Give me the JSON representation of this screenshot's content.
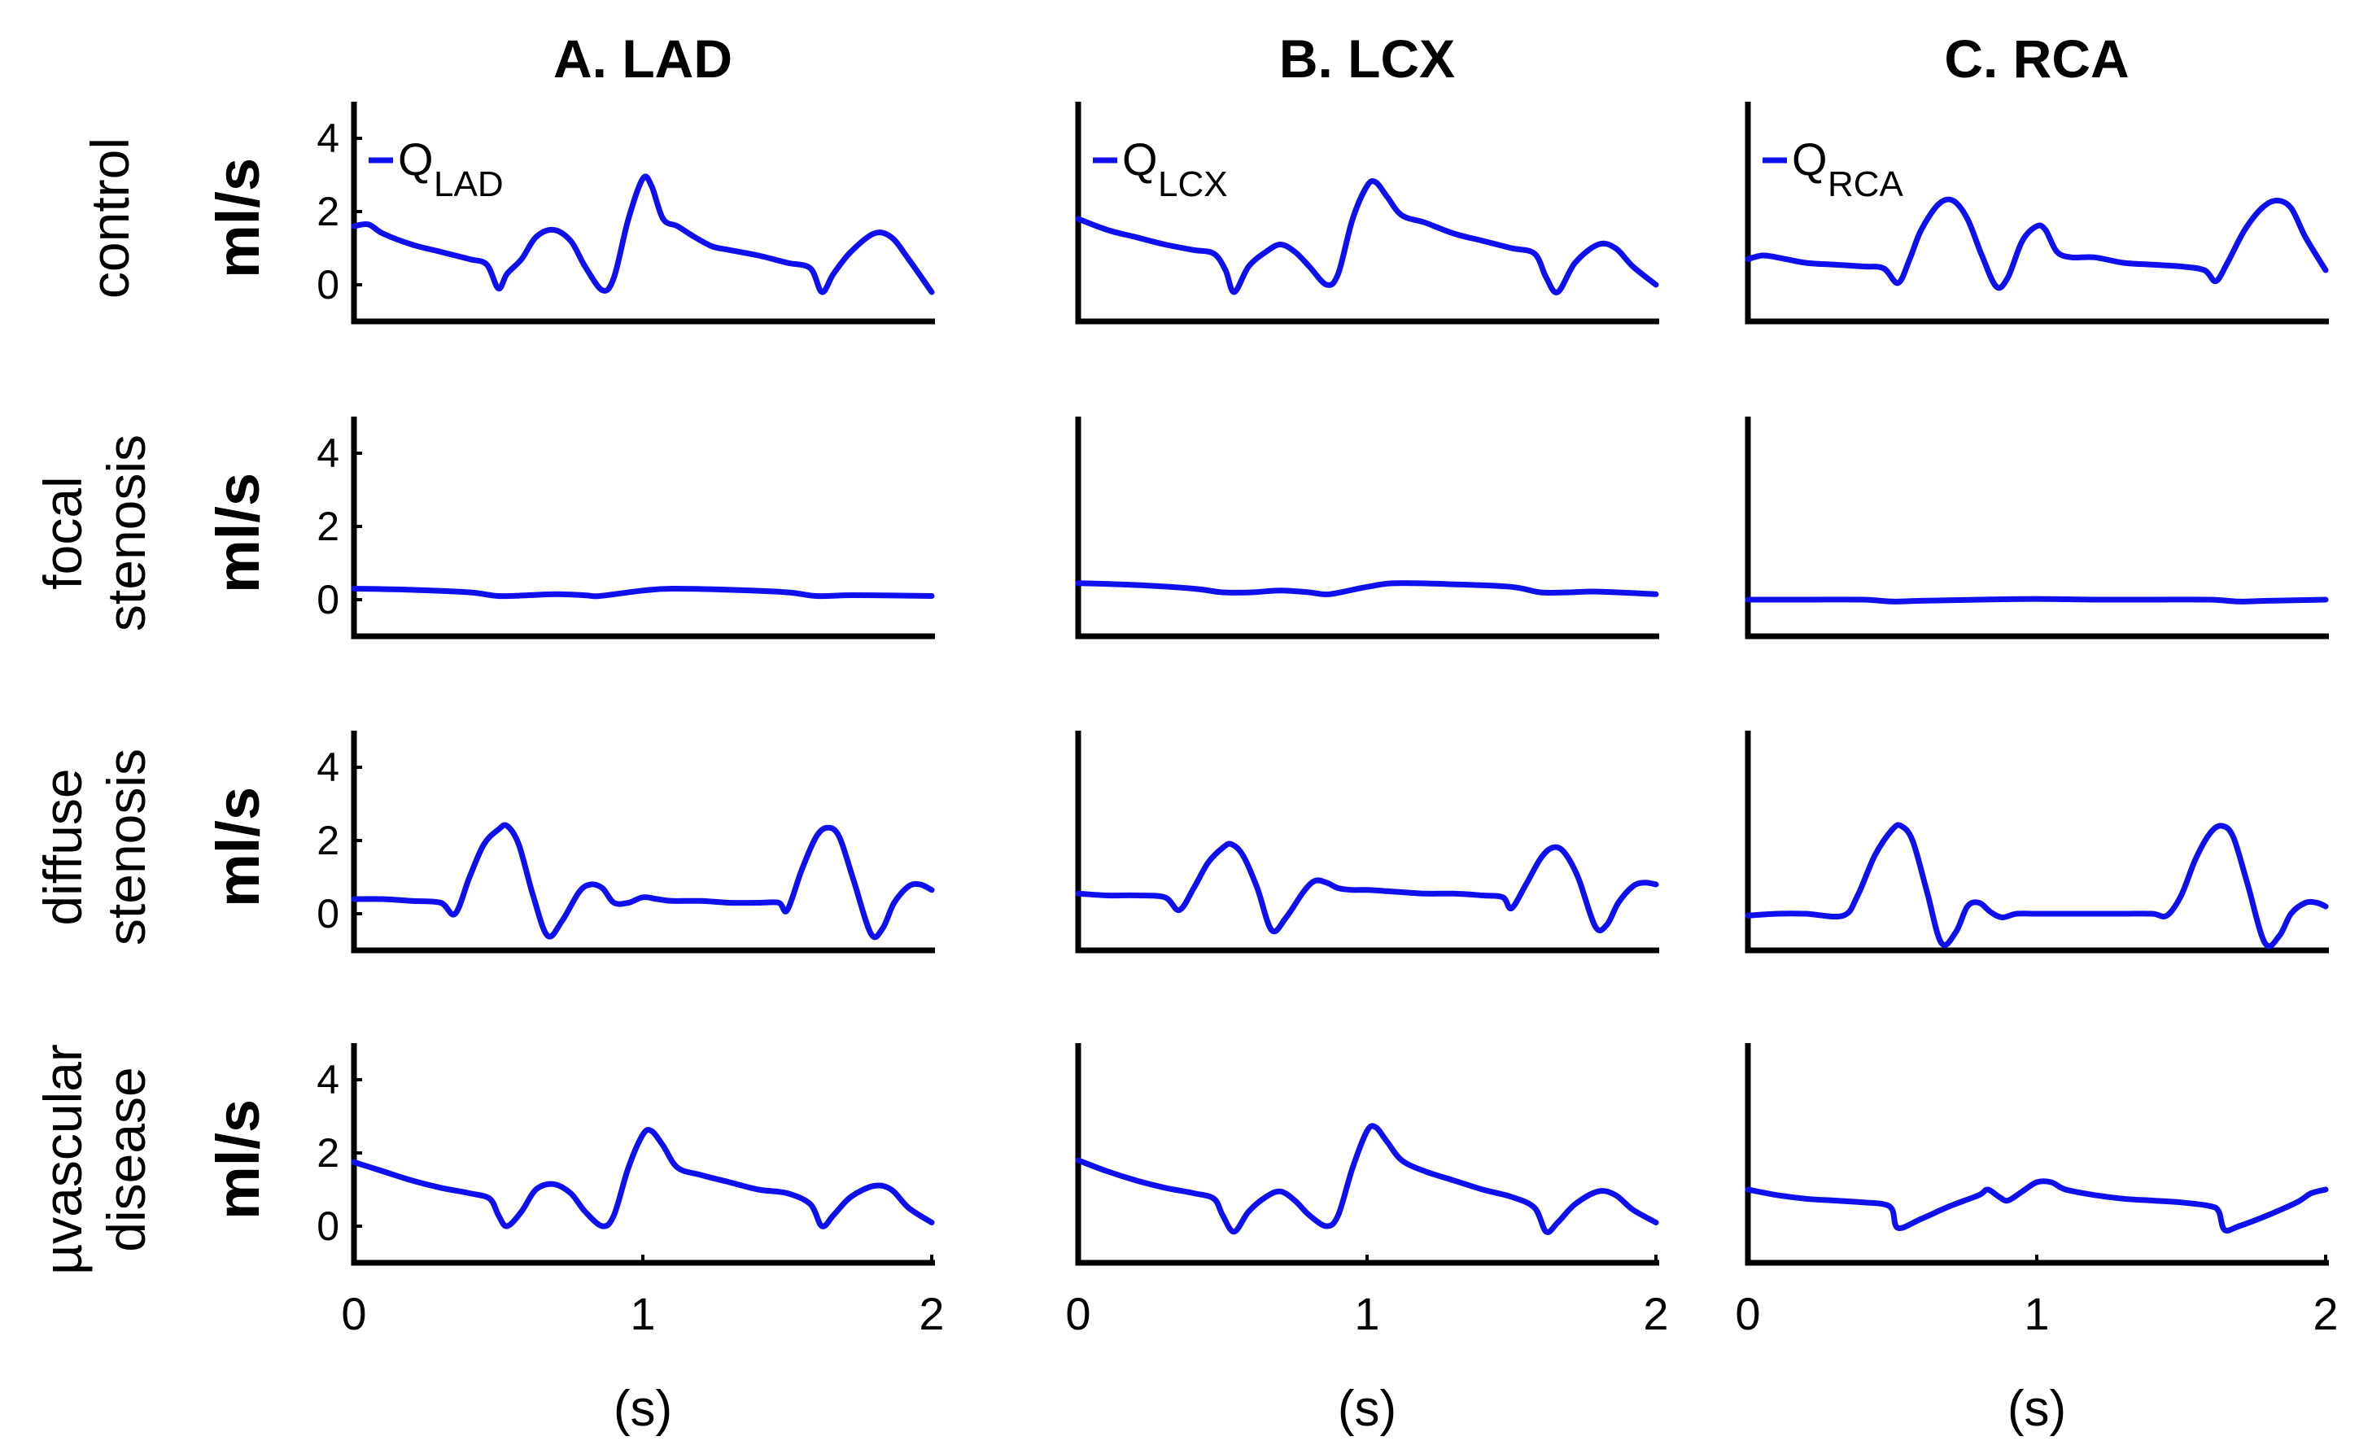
{
  "chart_data": [
    {
      "type": "line",
      "column": "A. LAD",
      "rows": [
        {
          "row": [
            "control"
          ],
          "unit": "ml/s",
          "legend": {
            "main": "Q",
            "sub": "LAD"
          },
          "series": [
            {
              "name": "Q_LAD",
              "x": [
                0,
                0.05,
                0.1,
                0.2,
                0.3,
                0.4,
                0.46,
                0.5,
                0.53,
                0.58,
                0.63,
                0.69,
                0.75,
                0.8,
                0.86,
                0.9,
                0.95,
                1.0,
                1.03,
                1.07,
                1.12,
                1.18,
                1.24,
                1.3,
                1.4,
                1.5,
                1.58,
                1.62,
                1.66,
                1.72,
                1.8,
                1.86,
                1.92,
                2.0
              ],
              "y": [
                1.6,
                1.65,
                1.4,
                1.1,
                0.9,
                0.7,
                0.55,
                -0.1,
                0.3,
                0.7,
                1.3,
                1.5,
                1.2,
                0.5,
                -0.15,
                0.2,
                1.8,
                2.9,
                2.7,
                1.8,
                1.6,
                1.3,
                1.05,
                0.95,
                0.8,
                0.6,
                0.45,
                -0.2,
                0.3,
                0.9,
                1.4,
                1.3,
                0.7,
                -0.2
              ]
            }
          ]
        },
        {
          "row": [
            "focal",
            "stenosis"
          ],
          "unit": "ml/s",
          "series": [
            {
              "name": "Q_LAD",
              "x": [
                0,
                0.2,
                0.4,
                0.5,
                0.6,
                0.7,
                0.8,
                0.85,
                1.0,
                1.1,
                1.3,
                1.5,
                1.6,
                1.7,
                1.8,
                2.0
              ],
              "y": [
                0.3,
                0.27,
                0.2,
                0.1,
                0.12,
                0.15,
                0.12,
                0.1,
                0.25,
                0.3,
                0.27,
                0.2,
                0.1,
                0.12,
                0.12,
                0.1
              ]
            }
          ]
        },
        {
          "row": [
            "diffuse",
            "stenosis"
          ],
          "unit": "ml/s",
          "series": [
            {
              "name": "Q_LAD",
              "x": [
                0,
                0.1,
                0.2,
                0.3,
                0.35,
                0.4,
                0.45,
                0.5,
                0.53,
                0.57,
                0.62,
                0.67,
                0.72,
                0.78,
                0.82,
                0.86,
                0.9,
                0.95,
                1.0,
                1.05,
                1.1,
                1.2,
                1.3,
                1.4,
                1.47,
                1.5,
                1.55,
                1.6,
                1.64,
                1.68,
                1.73,
                1.79,
                1.83,
                1.87,
                1.92,
                1.96,
                2.0
              ],
              "y": [
                0.4,
                0.4,
                0.35,
                0.3,
                0.0,
                1.0,
                1.9,
                2.3,
                2.4,
                1.9,
                0.5,
                -0.6,
                -0.2,
                0.6,
                0.8,
                0.7,
                0.3,
                0.3,
                0.45,
                0.4,
                0.35,
                0.35,
                0.3,
                0.3,
                0.3,
                0.1,
                1.2,
                2.1,
                2.35,
                2.1,
                0.9,
                -0.55,
                -0.4,
                0.3,
                0.75,
                0.8,
                0.65
              ]
            }
          ]
        },
        {
          "row": [
            "µvascular",
            "disease"
          ],
          "unit": "ml/s",
          "series": [
            {
              "name": "Q_LAD",
              "x": [
                0,
                0.1,
                0.2,
                0.3,
                0.4,
                0.47,
                0.5,
                0.53,
                0.58,
                0.63,
                0.69,
                0.75,
                0.8,
                0.86,
                0.9,
                0.95,
                1.0,
                1.03,
                1.07,
                1.12,
                1.2,
                1.3,
                1.4,
                1.5,
                1.58,
                1.62,
                1.66,
                1.72,
                1.8,
                1.86,
                1.92,
                2.0
              ],
              "y": [
                1.75,
                1.5,
                1.25,
                1.05,
                0.9,
                0.75,
                0.3,
                0.0,
                0.4,
                1.0,
                1.15,
                0.9,
                0.4,
                0.0,
                0.3,
                1.6,
                2.5,
                2.6,
                2.2,
                1.6,
                1.4,
                1.2,
                1.0,
                0.9,
                0.6,
                0.0,
                0.3,
                0.8,
                1.1,
                1.0,
                0.5,
                0.1
              ]
            }
          ]
        }
      ],
      "x_ticks": [
        "0",
        "1",
        "2"
      ],
      "xlabel": "(s)"
    },
    {
      "type": "line",
      "column": "B. LCX",
      "rows": [
        {
          "legend": {
            "main": "Q",
            "sub": "LCX"
          },
          "series": [
            {
              "name": "Q_LCX",
              "x": [
                0,
                0.1,
                0.2,
                0.3,
                0.4,
                0.47,
                0.51,
                0.54,
                0.59,
                0.65,
                0.7,
                0.75,
                0.8,
                0.86,
                0.9,
                0.95,
                1.0,
                1.03,
                1.07,
                1.12,
                1.2,
                1.3,
                1.4,
                1.5,
                1.58,
                1.62,
                1.66,
                1.72,
                1.8,
                1.86,
                1.92,
                2.0
              ],
              "y": [
                1.8,
                1.5,
                1.3,
                1.1,
                0.95,
                0.85,
                0.4,
                -0.2,
                0.5,
                0.9,
                1.1,
                0.9,
                0.5,
                0.0,
                0.3,
                1.8,
                2.7,
                2.8,
                2.4,
                1.9,
                1.7,
                1.4,
                1.2,
                1.0,
                0.85,
                0.2,
                -0.2,
                0.6,
                1.1,
                1.0,
                0.5,
                0.0
              ]
            }
          ]
        },
        {
          "series": [
            {
              "name": "Q_LCX",
              "x": [
                0,
                0.2,
                0.4,
                0.5,
                0.6,
                0.7,
                0.8,
                0.87,
                1.0,
                1.1,
                1.3,
                1.5,
                1.6,
                1.7,
                1.8,
                2.0
              ],
              "y": [
                0.45,
                0.4,
                0.3,
                0.2,
                0.2,
                0.25,
                0.2,
                0.15,
                0.35,
                0.45,
                0.42,
                0.35,
                0.2,
                0.2,
                0.22,
                0.15
              ]
            }
          ]
        },
        {
          "series": [
            {
              "name": "Q_LCX",
              "x": [
                0,
                0.1,
                0.2,
                0.3,
                0.35,
                0.4,
                0.45,
                0.5,
                0.53,
                0.57,
                0.62,
                0.67,
                0.72,
                0.78,
                0.82,
                0.86,
                0.9,
                0.95,
                1.0,
                1.1,
                1.2,
                1.3,
                1.4,
                1.47,
                1.5,
                1.55,
                1.6,
                1.64,
                1.68,
                1.73,
                1.79,
                1.83,
                1.87,
                1.92,
                1.96,
                2.0
              ],
              "y": [
                0.55,
                0.5,
                0.5,
                0.45,
                0.1,
                0.7,
                1.4,
                1.8,
                1.9,
                1.6,
                0.7,
                -0.45,
                -0.1,
                0.6,
                0.9,
                0.85,
                0.7,
                0.65,
                0.65,
                0.6,
                0.55,
                0.55,
                0.5,
                0.45,
                0.15,
                0.8,
                1.5,
                1.8,
                1.7,
                1.0,
                -0.35,
                -0.3,
                0.3,
                0.75,
                0.85,
                0.8
              ]
            }
          ]
        },
        {
          "series": [
            {
              "name": "Q_LCX",
              "x": [
                0,
                0.1,
                0.2,
                0.3,
                0.4,
                0.47,
                0.5,
                0.54,
                0.59,
                0.65,
                0.7,
                0.75,
                0.8,
                0.86,
                0.9,
                0.95,
                1.0,
                1.03,
                1.07,
                1.12,
                1.2,
                1.3,
                1.4,
                1.5,
                1.58,
                1.62,
                1.66,
                1.72,
                1.8,
                1.86,
                1.92,
                2.0
              ],
              "y": [
                1.8,
                1.5,
                1.25,
                1.05,
                0.9,
                0.75,
                0.3,
                -0.15,
                0.4,
                0.8,
                0.95,
                0.7,
                0.3,
                0.0,
                0.3,
                1.6,
                2.6,
                2.7,
                2.3,
                1.8,
                1.5,
                1.25,
                1.0,
                0.8,
                0.5,
                -0.15,
                0.1,
                0.6,
                0.95,
                0.85,
                0.45,
                0.1
              ]
            }
          ]
        }
      ],
      "x_ticks": [
        "0",
        "1",
        "2"
      ],
      "xlabel": "(s)"
    },
    {
      "type": "line",
      "column": "C. RCA",
      "rows": [
        {
          "legend": {
            "main": "Q",
            "sub": "RCA"
          },
          "series": [
            {
              "name": "Q_RCA",
              "x": [
                0,
                0.05,
                0.1,
                0.2,
                0.3,
                0.4,
                0.47,
                0.52,
                0.56,
                0.6,
                0.66,
                0.71,
                0.76,
                0.81,
                0.86,
                0.9,
                0.95,
                1.0,
                1.03,
                1.07,
                1.12,
                1.2,
                1.3,
                1.4,
                1.5,
                1.58,
                1.62,
                1.66,
                1.72,
                1.78,
                1.83,
                1.88,
                1.93,
                2.0
              ],
              "y": [
                0.7,
                0.8,
                0.75,
                0.6,
                0.55,
                0.5,
                0.45,
                0.05,
                0.7,
                1.5,
                2.2,
                2.3,
                1.8,
                0.8,
                -0.05,
                0.2,
                1.2,
                1.6,
                1.5,
                0.9,
                0.75,
                0.75,
                0.6,
                0.55,
                0.5,
                0.4,
                0.1,
                0.6,
                1.5,
                2.1,
                2.3,
                2.1,
                1.3,
                0.4
              ]
            }
          ]
        },
        {
          "series": [
            {
              "name": "Q_RCA",
              "x": [
                0,
                0.2,
                0.4,
                0.5,
                0.6,
                0.8,
                1.0,
                1.2,
                1.4,
                1.6,
                1.7,
                1.8,
                2.0
              ],
              "y": [
                0.0,
                0.0,
                0.0,
                -0.05,
                -0.03,
                0.0,
                0.02,
                0.0,
                0.0,
                0.0,
                -0.05,
                -0.03,
                0.0
              ]
            }
          ]
        },
        {
          "series": [
            {
              "name": "Q_RCA",
              "x": [
                0,
                0.1,
                0.2,
                0.33,
                0.38,
                0.44,
                0.5,
                0.53,
                0.57,
                0.62,
                0.67,
                0.72,
                0.76,
                0.8,
                0.84,
                0.88,
                0.93,
                1.0,
                1.1,
                1.2,
                1.3,
                1.4,
                1.45,
                1.5,
                1.55,
                1.6,
                1.64,
                1.68,
                1.73,
                1.79,
                1.84,
                1.88,
                1.93,
                1.97,
                2.0
              ],
              "y": [
                -0.05,
                0.0,
                0.0,
                -0.05,
                0.5,
                1.6,
                2.3,
                2.4,
                2.0,
                0.6,
                -0.8,
                -0.5,
                0.2,
                0.3,
                0.05,
                -0.1,
                0.0,
                0.0,
                0.0,
                0.0,
                0.0,
                0.0,
                -0.05,
                0.5,
                1.5,
                2.2,
                2.4,
                2.1,
                0.8,
                -0.8,
                -0.6,
                0.0,
                0.3,
                0.3,
                0.2
              ]
            }
          ]
        },
        {
          "series": [
            {
              "name": "Q_RCA",
              "x": [
                0,
                0.1,
                0.2,
                0.3,
                0.4,
                0.47,
                0.5,
                0.52,
                0.6,
                0.7,
                0.8,
                0.83,
                0.87,
                0.9,
                0.95,
                1.0,
                1.05,
                1.1,
                1.2,
                1.3,
                1.4,
                1.5,
                1.6,
                1.63,
                1.65,
                1.7,
                1.8,
                1.9,
                1.95,
                2.0
              ],
              "y": [
                1.0,
                0.85,
                0.75,
                0.7,
                0.65,
                0.6,
                0.45,
                -0.05,
                0.2,
                0.55,
                0.85,
                1.0,
                0.8,
                0.7,
                0.95,
                1.2,
                1.2,
                1.0,
                0.85,
                0.75,
                0.7,
                0.65,
                0.55,
                0.4,
                -0.1,
                0.0,
                0.3,
                0.65,
                0.9,
                1.0
              ]
            }
          ]
        }
      ],
      "x_ticks": [
        "0",
        "1",
        "2"
      ],
      "xlabel": "(s)"
    }
  ],
  "y_ticks": [
    "0",
    "2",
    "4"
  ],
  "y_tick_values": [
    0,
    2,
    4
  ],
  "ylim": [
    -1,
    5
  ],
  "xlim": [
    0,
    2
  ],
  "line_color": "#1010ee"
}
